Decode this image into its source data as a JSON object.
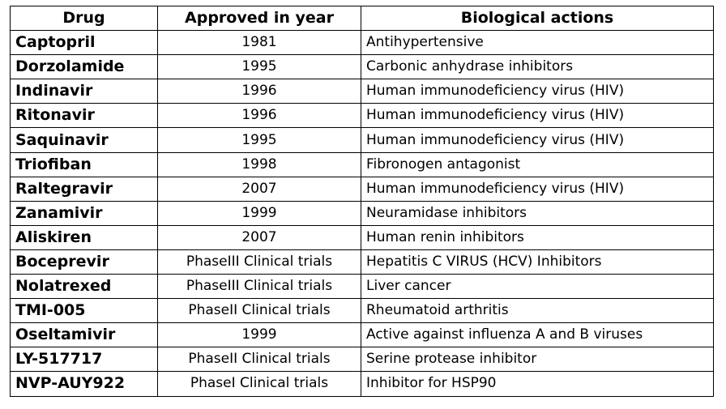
{
  "table": {
    "headers": [
      "Drug",
      "Approved in year",
      "Biological actions"
    ],
    "rows": [
      [
        "Captopril",
        "1981",
        "Antihypertensive"
      ],
      [
        "Dorzolamide",
        "1995",
        "Carbonic anhydrase inhibitors"
      ],
      [
        "Indinavir",
        "1996",
        "Human immunodeficiency virus (HIV)"
      ],
      [
        "Ritonavir",
        "1996",
        "Human immunodeficiency virus (HIV)"
      ],
      [
        "Saquinavir",
        "1995",
        "Human immunodeficiency virus (HIV)"
      ],
      [
        "Triofiban",
        "1998",
        "Fibronogen antagonist"
      ],
      [
        "Raltegravir",
        "2007",
        "Human immunodeficiency virus (HIV)"
      ],
      [
        "Zanamivir",
        "1999",
        "Neuramidase inhibitors"
      ],
      [
        "Aliskiren",
        "2007",
        "Human renin inhibitors"
      ],
      [
        "Boceprevir",
        "PhaseIII Clinical trials",
        "Hepatitis C VIRUS (HCV) Inhibitors"
      ],
      [
        "Nolatrexed",
        "PhaseIII Clinical trials",
        "Liver cancer"
      ],
      [
        "TMI-005",
        "PhaseII Clinical trials",
        "Rheumatoid arthritis"
      ],
      [
        "Oseltamivir",
        "1999",
        "Active against influenza A and B viruses"
      ],
      [
        "LY-517717",
        "PhaseII Clinical trials",
        "Serine protease inhibitor"
      ],
      [
        "NVP-AUY922",
        "PhaseI Clinical trials",
        "Inhibitor for HSP90"
      ]
    ]
  }
}
